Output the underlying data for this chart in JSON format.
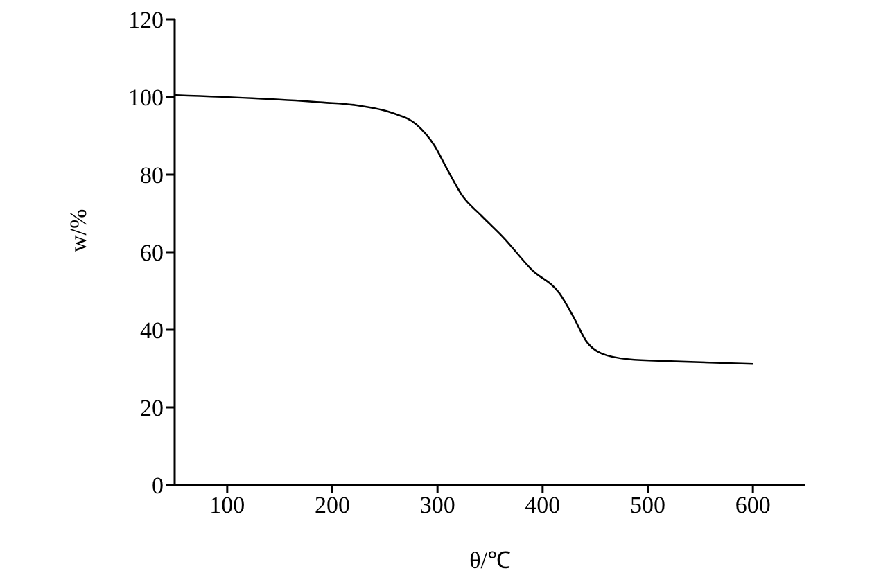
{
  "chart_data": {
    "type": "line",
    "xlabel": "θ/℃",
    "ylabel": "w/%",
    "x": [
      50,
      191,
      222,
      258,
      280,
      297,
      310,
      324,
      341,
      363,
      390,
      416,
      429,
      442,
      456,
      482,
      522,
      600
    ],
    "series": [
      {
        "color": "#000000",
        "values": [
          100.5,
          98.6,
          97.9,
          95.8,
          92.9,
          87.5,
          81,
          74.4,
          69.6,
          63.7,
          55.4,
          49.4,
          43.5,
          36.9,
          33.9,
          32.4,
          31.9,
          31.2
        ]
      }
    ],
    "xlim": [
      50,
      650
    ],
    "xticks": [
      100,
      200,
      300,
      400,
      500,
      600
    ],
    "ylim": [
      0,
      120
    ],
    "yticks": [
      0,
      20,
      40,
      60,
      80,
      100,
      120
    ],
    "grid": false,
    "legend": false,
    "marker": "none",
    "line_style": "solid"
  }
}
